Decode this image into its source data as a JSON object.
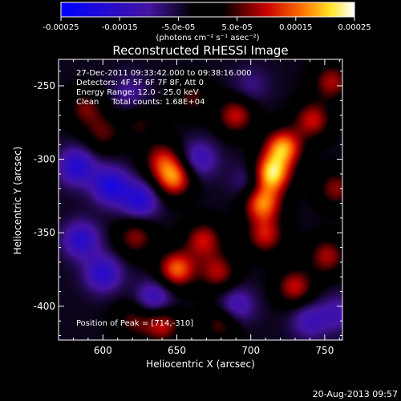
{
  "chart_data": {
    "type": "heatmap",
    "title": "Reconstructed RHESSI Image",
    "xlabel": "Heliocentric X (arcsec)",
    "ylabel": "Heliocentric Y (arcsec)",
    "xlim": [
      570,
      762
    ],
    "ylim": [
      -423,
      -232
    ],
    "x_ticks": [
      600,
      650,
      700,
      750
    ],
    "x_tick_labels": [
      "600",
      "650",
      "700",
      "750"
    ],
    "y_ticks": [
      -250,
      -300,
      -350,
      -400
    ],
    "y_tick_labels": [
      "-250",
      "-300",
      "-350",
      "-400"
    ],
    "colorbar": {
      "range": [
        -0.00025,
        0.00025
      ],
      "ticks": [
        -0.00025,
        -0.00015,
        -5e-05,
        5e-05,
        0.00015,
        0.00025
      ],
      "tick_labels": [
        "-0.00025",
        "-0.00015",
        "-5.0e-05",
        "5.0e-05",
        "0.00015",
        "0.00025"
      ],
      "unit_label": "(photons cm⁻² s⁻¹ asec⁻²)",
      "colors": [
        "#0000ff",
        "#000000",
        "#ff0000",
        "#ffff00",
        "#ffffff"
      ]
    },
    "sources": [
      {
        "x": 714,
        "y": -310,
        "amp": 1.0
      },
      {
        "x": 722,
        "y": -292,
        "amp": 0.85
      },
      {
        "x": 708,
        "y": -330,
        "amp": 0.8
      },
      {
        "x": 690,
        "y": -270,
        "amp": 0.55
      },
      {
        "x": 742,
        "y": -273,
        "amp": 0.55
      },
      {
        "x": 648,
        "y": -313,
        "amp": 0.75
      },
      {
        "x": 640,
        "y": -300,
        "amp": 0.5
      },
      {
        "x": 668,
        "y": -355,
        "amp": 0.55
      },
      {
        "x": 650,
        "y": -375,
        "amp": 0.75
      },
      {
        "x": 678,
        "y": -377,
        "amp": 0.5
      },
      {
        "x": 622,
        "y": -353,
        "amp": 0.45
      },
      {
        "x": 730,
        "y": -387,
        "amp": 0.55
      },
      {
        "x": 752,
        "y": -366,
        "amp": 0.5
      },
      {
        "x": 710,
        "y": -352,
        "amp": 0.55
      },
      {
        "x": 640,
        "y": -413,
        "amp": 0.55
      },
      {
        "x": 620,
        "y": -410,
        "amp": 0.35
      },
      {
        "x": 680,
        "y": -412,
        "amp": 0.4
      },
      {
        "x": 758,
        "y": -320,
        "amp": 0.45
      },
      {
        "x": 755,
        "y": -247,
        "amp": 0.5
      },
      {
        "x": 588,
        "y": -265,
        "amp": 0.4
      },
      {
        "x": 600,
        "y": -282,
        "amp": 0.35
      },
      {
        "x": 625,
        "y": -276,
        "amp": 0.3
      },
      {
        "x": 660,
        "y": -258,
        "amp": 0.35
      },
      {
        "x": 582,
        "y": -305,
        "amp": -0.55
      },
      {
        "x": 605,
        "y": -318,
        "amp": -0.6
      },
      {
        "x": 625,
        "y": -328,
        "amp": -0.55
      },
      {
        "x": 585,
        "y": -355,
        "amp": -0.5
      },
      {
        "x": 600,
        "y": -378,
        "amp": -0.5
      },
      {
        "x": 635,
        "y": -395,
        "amp": -0.45
      },
      {
        "x": 690,
        "y": -400,
        "amp": -0.4
      },
      {
        "x": 700,
        "y": -315,
        "amp": -0.3
      },
      {
        "x": 665,
        "y": -300,
        "amp": -0.4
      },
      {
        "x": 740,
        "y": -410,
        "amp": -0.35
      },
      {
        "x": 760,
        "y": -405,
        "amp": -0.3
      },
      {
        "x": 618,
        "y": -255,
        "amp": -0.25
      },
      {
        "x": 700,
        "y": -250,
        "amp": -0.2
      }
    ],
    "source_width_arcsec": 9
  },
  "annotations": {
    "time_range": "27-Dec-2011 09:33:42.000 to 09:38:16.000",
    "detectors": "Detectors: 4F 5F 6F 7F 8F, Att 0",
    "energy": "Energy Range: 12.0 - 25.0 keV",
    "clean": "Clean     Total counts: 1.68E+04",
    "peak": "Position of Peak = [714,-310]"
  },
  "footer_date": "20-Aug-2013 09:57"
}
